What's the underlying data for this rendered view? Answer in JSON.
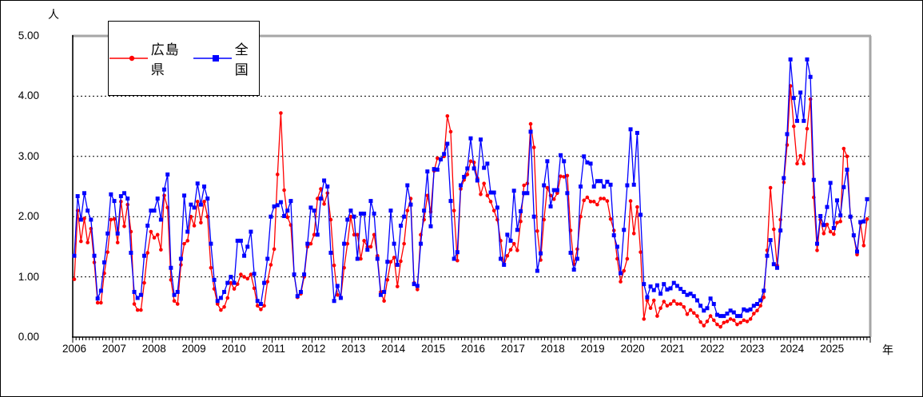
{
  "labels": {
    "y_unit": "人",
    "x_unit": "年"
  },
  "chart_data": {
    "type": "line",
    "title": "",
    "xlabel": "年",
    "ylabel": "人",
    "ylim": [
      0,
      5
    ],
    "y_ticks": [
      "0.00",
      "1.00",
      "2.00",
      "3.00",
      "4.00",
      "5.00"
    ],
    "x_years": [
      "2006",
      "2007",
      "2008",
      "2009",
      "2010",
      "2011",
      "2012",
      "2013",
      "2014",
      "2015",
      "2016",
      "2017",
      "2018",
      "2019",
      "2020",
      "2021",
      "2022",
      "2023",
      "2024",
      "2025"
    ],
    "x_unit": "month",
    "grid": "horizontal dashed lines at 1.00-4.00, monthly tick marks on x-axis",
    "legend_position": "top-left",
    "frame_shadow_color": "#a6a6a6",
    "axis_color": "#000000",
    "series": [
      {
        "name": "広島県",
        "color": "#ff0000",
        "marker": "circle",
        "values": [
          0.96,
          2.1,
          1.59,
          1.97,
          1.57,
          1.8,
          1.24,
          0.57,
          0.57,
          1.06,
          1.41,
          1.95,
          1.96,
          1.57,
          2.25,
          1.84,
          2.2,
          1.75,
          0.55,
          0.45,
          0.45,
          0.9,
          1.4,
          1.75,
          1.65,
          1.7,
          1.45,
          2.35,
          2.15,
          0.95,
          0.6,
          0.55,
          1.2,
          1.55,
          1.6,
          2.0,
          1.85,
          2.25,
          1.9,
          2.25,
          2.0,
          1.15,
          0.8,
          0.55,
          0.45,
          0.5,
          0.65,
          0.9,
          0.8,
          0.88,
          1.04,
          1.0,
          0.97,
          1.04,
          0.81,
          0.52,
          0.46,
          0.52,
          0.92,
          1.2,
          1.46,
          2.7,
          3.72,
          2.44,
          1.99,
          1.86,
          1.04,
          0.66,
          0.72,
          1.0,
          1.5,
          1.55,
          1.7,
          2.3,
          2.46,
          2.21,
          2.39,
          1.95,
          1.19,
          0.7,
          0.65,
          1.15,
          1.55,
          2.0,
          1.7,
          1.7,
          1.3,
          1.6,
          1.5,
          1.5,
          1.7,
          1.35,
          0.75,
          0.6,
          0.95,
          1.25,
          1.32,
          0.84,
          1.26,
          1.55,
          2.1,
          2.3,
          0.9,
          0.79,
          1.7,
          1.95,
          2.35,
          2.08,
          2.76,
          2.97,
          2.95,
          3.0,
          3.67,
          3.41,
          2.1,
          1.27,
          2.46,
          2.61,
          2.7,
          2.92,
          2.9,
          2.64,
          2.37,
          2.55,
          2.35,
          2.25,
          2.1,
          1.95,
          1.6,
          1.2,
          1.35,
          1.45,
          1.55,
          1.44,
          1.92,
          2.52,
          2.55,
          3.54,
          3.15,
          1.76,
          1.28,
          1.95,
          2.48,
          2.35,
          2.29,
          2.39,
          2.67,
          2.66,
          2.68,
          1.77,
          1.21,
          1.46,
          2.0,
          2.27,
          2.32,
          2.25,
          2.25,
          2.2,
          2.3,
          2.3,
          2.26,
          1.96,
          1.77,
          1.3,
          0.92,
          1.1,
          1.3,
          2.26,
          1.72,
          2.16,
          1.41,
          0.3,
          0.61,
          0.48,
          0.61,
          0.35,
          0.48,
          0.59,
          0.52,
          0.55,
          0.6,
          0.55,
          0.55,
          0.5,
          0.38,
          0.45,
          0.4,
          0.35,
          0.25,
          0.19,
          0.26,
          0.35,
          0.28,
          0.21,
          0.17,
          0.24,
          0.26,
          0.3,
          0.28,
          0.21,
          0.24,
          0.28,
          0.26,
          0.3,
          0.39,
          0.44,
          0.52,
          0.66,
          1.44,
          2.48,
          1.79,
          1.19,
          1.95,
          2.57,
          3.19,
          4.17,
          3.5,
          2.88,
          3.01,
          2.88,
          3.46,
          3.95,
          2.32,
          1.44,
          1.95,
          1.72,
          1.87,
          1.75,
          1.71,
          1.9,
          1.92,
          3.13,
          3.0,
          1.99,
          1.68,
          1.37,
          1.89,
          1.52,
          1.96
        ]
      },
      {
        "name": "全国",
        "color": "#0000ff",
        "marker": "square",
        "values": [
          1.35,
          2.34,
          1.95,
          2.39,
          2.1,
          1.95,
          1.35,
          0.64,
          0.77,
          1.24,
          1.72,
          2.37,
          2.26,
          1.72,
          2.34,
          2.39,
          2.3,
          1.4,
          0.75,
          0.65,
          0.7,
          1.35,
          1.85,
          2.1,
          2.1,
          2.3,
          1.95,
          2.45,
          2.7,
          1.15,
          0.7,
          0.75,
          1.3,
          2.35,
          1.75,
          2.2,
          2.15,
          2.55,
          2.2,
          2.5,
          2.3,
          1.55,
          0.95,
          0.6,
          0.65,
          0.75,
          0.9,
          1.0,
          0.9,
          1.6,
          1.6,
          1.35,
          1.5,
          1.75,
          1.05,
          0.6,
          0.55,
          0.9,
          1.3,
          2.0,
          2.17,
          2.19,
          2.24,
          2.01,
          2.1,
          2.26,
          1.04,
          0.68,
          0.75,
          1.04,
          1.55,
          2.15,
          2.1,
          1.7,
          2.3,
          2.6,
          2.5,
          1.4,
          0.6,
          0.85,
          0.65,
          1.55,
          1.95,
          2.1,
          2.0,
          1.3,
          2.05,
          2.05,
          1.45,
          2.26,
          2.05,
          1.3,
          0.7,
          0.75,
          1.25,
          2.1,
          1.55,
          1.2,
          1.85,
          2.0,
          2.52,
          2.2,
          0.88,
          0.85,
          1.55,
          2.1,
          2.75,
          1.84,
          2.79,
          2.78,
          2.95,
          3.04,
          3.21,
          2.26,
          1.3,
          1.41,
          2.52,
          2.66,
          2.8,
          3.3,
          2.8,
          2.6,
          3.28,
          2.81,
          2.88,
          2.4,
          2.4,
          2.15,
          1.3,
          1.2,
          1.7,
          1.6,
          2.43,
          1.78,
          2.09,
          2.39,
          2.39,
          3.41,
          2.0,
          1.1,
          1.39,
          2.52,
          2.92,
          2.17,
          2.44,
          2.44,
          3.02,
          2.92,
          2.39,
          1.4,
          1.12,
          1.3,
          2.5,
          3.0,
          2.9,
          2.88,
          2.5,
          2.59,
          2.59,
          2.5,
          2.58,
          2.53,
          1.69,
          1.5,
          1.06,
          1.78,
          2.52,
          3.45,
          2.53,
          3.39,
          2.03,
          0.88,
          0.66,
          0.84,
          0.78,
          0.86,
          0.72,
          0.88,
          0.79,
          0.81,
          0.9,
          0.85,
          0.8,
          0.75,
          0.7,
          0.72,
          0.68,
          0.61,
          0.52,
          0.44,
          0.48,
          0.64,
          0.55,
          0.37,
          0.35,
          0.35,
          0.39,
          0.44,
          0.41,
          0.35,
          0.35,
          0.46,
          0.44,
          0.46,
          0.52,
          0.55,
          0.61,
          0.77,
          1.35,
          1.61,
          1.21,
          1.15,
          1.77,
          2.64,
          3.37,
          4.61,
          3.97,
          3.59,
          4.06,
          3.59,
          4.61,
          4.32,
          2.61,
          1.55,
          2.01,
          1.86,
          2.16,
          2.56,
          1.81,
          2.27,
          2.02,
          2.49,
          2.78,
          2.0,
          1.69,
          1.42,
          1.91,
          1.92,
          2.29
        ]
      }
    ]
  }
}
